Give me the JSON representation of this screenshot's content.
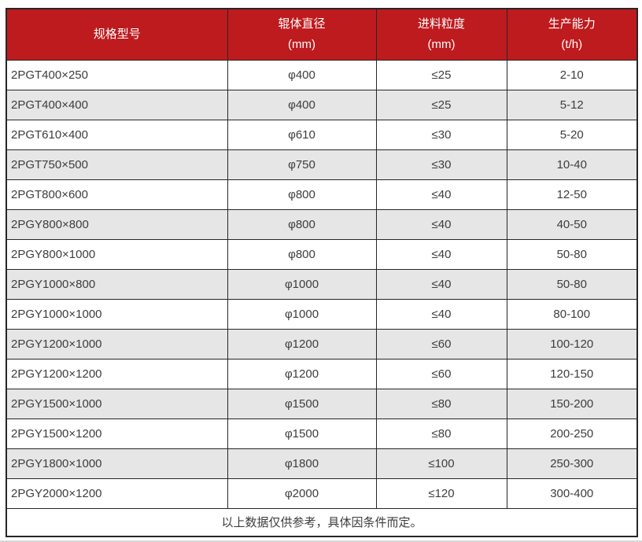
{
  "theme": {
    "header_bg": "#be1b1e",
    "header_text": "#ffffff",
    "row_alt_bg": "#e6e6e6",
    "border_color": "#262626",
    "body_text": "#3d3d3d"
  },
  "table": {
    "columns": [
      {
        "label": "规格型号",
        "unit": ""
      },
      {
        "label": "辊体直径",
        "unit": "(mm)"
      },
      {
        "label": "进料粒度",
        "unit": "(mm)"
      },
      {
        "label": "生产能力",
        "unit": "(t/h)"
      }
    ],
    "cell_names": [
      "cell-model",
      "cell-roller-diameter",
      "cell-feed-size",
      "cell-capacity"
    ],
    "rows": [
      [
        "2PGT400×250",
        "φ400",
        "≤25",
        "2-10"
      ],
      [
        "2PGT400×400",
        "φ400",
        "≤25",
        "5-12"
      ],
      [
        "2PGT610×400",
        "φ610",
        "≤30",
        "5-20"
      ],
      [
        "2PGT750×500",
        "φ750",
        "≤30",
        "10-40"
      ],
      [
        "2PGT800×600",
        "φ800",
        "≤40",
        "12-50"
      ],
      [
        "2PGY800×800",
        "φ800",
        "≤40",
        "40-50"
      ],
      [
        "2PGY800×1000",
        "φ800",
        "≤40",
        "50-80"
      ],
      [
        "2PGY1000×800",
        "φ1000",
        "≤40",
        "50-80"
      ],
      [
        "2PGY1000×1000",
        "φ1000",
        "≤40",
        "80-100"
      ],
      [
        "2PGY1200×1000",
        "φ1200",
        "≤60",
        "100-120"
      ],
      [
        "2PGY1200×1200",
        "φ1200",
        "≤60",
        "120-150"
      ],
      [
        "2PGY1500×1000",
        "φ1500",
        "≤80",
        "150-200"
      ],
      [
        "2PGY1500×1200",
        "φ1500",
        "≤80",
        "200-250"
      ],
      [
        "2PGY1800×1000",
        "φ1800",
        "≤100",
        "250-300"
      ],
      [
        "2PGY2000×1200",
        "φ2000",
        "≤120",
        "300-400"
      ]
    ],
    "footer_note": "以上数据仅供参考，具体因条件而定。"
  }
}
